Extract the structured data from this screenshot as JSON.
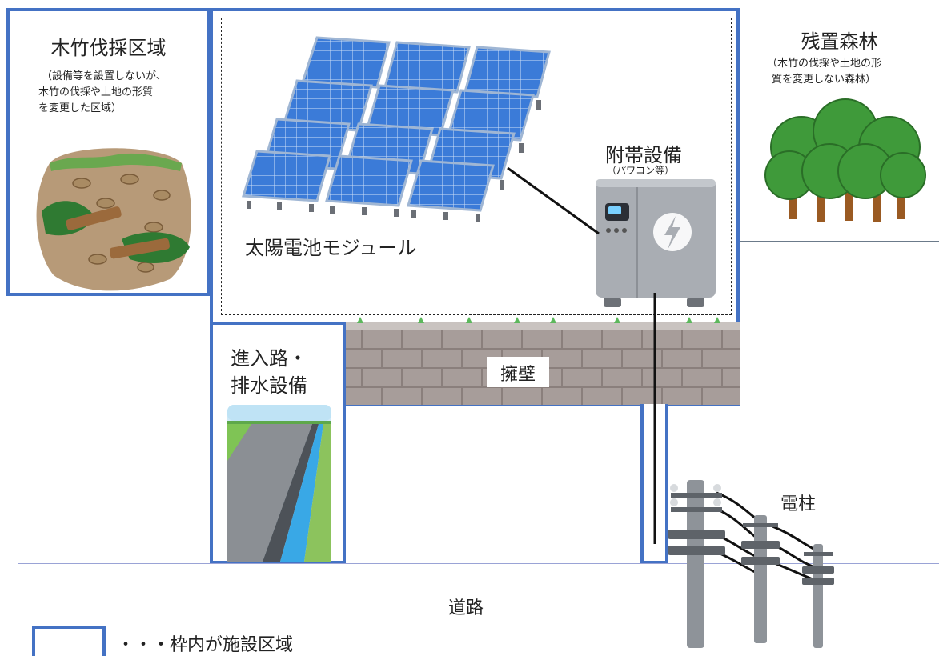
{
  "logging_area": {
    "title": "木竹伐採区域",
    "note_lines": [
      "（設備等を設置しないが、",
      "木竹の伐採や土地の形質",
      "を変更した区域）"
    ]
  },
  "remaining_forest": {
    "title": "残置森林",
    "note_lines": [
      "（木竹の伐採や土地の形",
      "質を変更しない森林）"
    ]
  },
  "solar": {
    "label": "太陽電池モジュール"
  },
  "auxiliary": {
    "title": "附帯設備",
    "subtitle": "（パワコン等）"
  },
  "retaining_wall": {
    "label": "擁壁"
  },
  "access_road": {
    "label_lines": [
      "進入路・",
      "排水設備"
    ]
  },
  "utility_pole": {
    "label": "電柱"
  },
  "road": {
    "label": "道路"
  },
  "legend": {
    "text": "・・・枠内が施設区域"
  },
  "colors": {
    "facility_border": "#4472c4",
    "road_line": "#9aa3d6",
    "panel_blue": "#2f6fc9",
    "forest_green": "#3f9a3a"
  }
}
